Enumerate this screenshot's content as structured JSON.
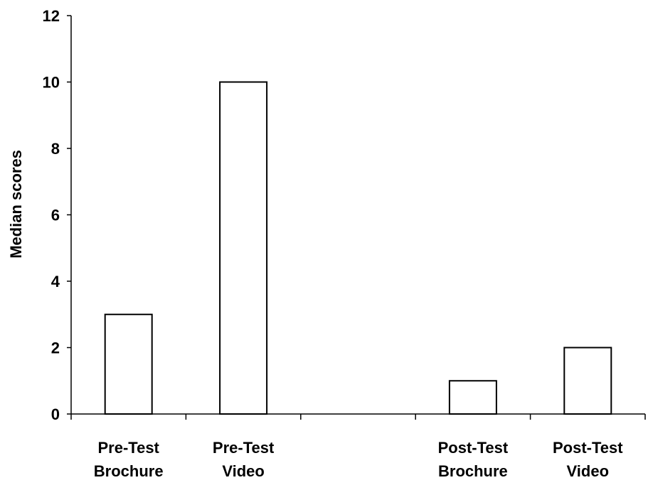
{
  "chart_data": {
    "type": "bar",
    "title": "",
    "xlabel": "",
    "ylabel": "Median scores",
    "ylim": [
      0,
      12
    ],
    "yticks": [
      0,
      2,
      4,
      6,
      8,
      10,
      12
    ],
    "grid": false,
    "legend": "none",
    "categories": [
      [
        "Pre-Test",
        "Brochure"
      ],
      [
        "Pre-Test",
        "Video"
      ],
      [
        "",
        ""
      ],
      [
        "Post-Test",
        "Brochure"
      ],
      [
        "Post-Test",
        "Video"
      ]
    ],
    "values": [
      3,
      10,
      null,
      1,
      2
    ],
    "colors": {
      "bar_fill": "#ffffff",
      "bar_stroke": "#000000"
    }
  }
}
